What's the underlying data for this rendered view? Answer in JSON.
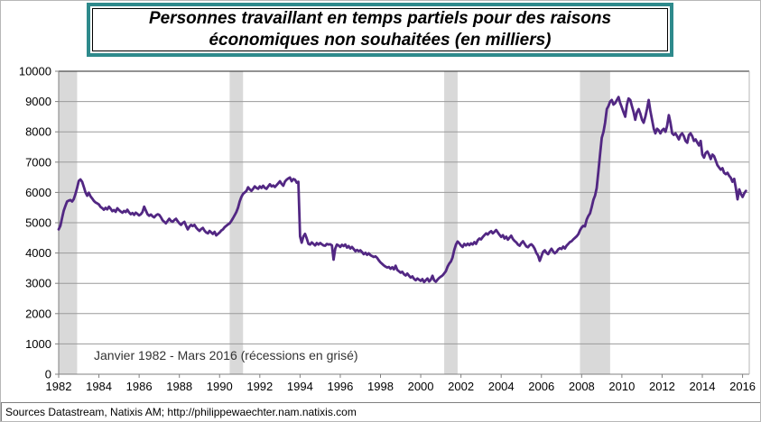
{
  "title": {
    "line1": "Personnes travaillant en temps partiels pour des raisons",
    "line2": "économiques non souhaitées (en milliers)"
  },
  "annotation": "Janvier 1982 - Mars 2016 (récessions en grisé)",
  "footer": "Sources Datastream, Natixis AM; http://philippewaechter.nam.natixis.com",
  "chart_data": {
    "type": "line",
    "title": "Personnes travaillant en temps partiels pour des raisons économiques non souhaitées (en milliers)",
    "xlabel": "",
    "ylabel": "",
    "x_domain": [
      1982,
      2016.3333
    ],
    "y_domain": [
      0,
      10000
    ],
    "x_ticks": [
      1982,
      1984,
      1986,
      1988,
      1990,
      1992,
      1994,
      1996,
      1998,
      2000,
      2002,
      2004,
      2006,
      2008,
      2010,
      2012,
      2014,
      2016
    ],
    "y_ticks": [
      0,
      1000,
      2000,
      3000,
      4000,
      5000,
      6000,
      7000,
      8000,
      9000,
      10000
    ],
    "grid": "horizontal",
    "legend": "none",
    "start_year": 1982,
    "points_per_year": 12,
    "values": [
      4780,
      4900,
      5150,
      5400,
      5550,
      5700,
      5730,
      5750,
      5700,
      5780,
      5950,
      6150,
      6380,
      6430,
      6350,
      6180,
      6000,
      5890,
      5990,
      5870,
      5800,
      5720,
      5670,
      5640,
      5600,
      5520,
      5480,
      5430,
      5490,
      5440,
      5530,
      5460,
      5380,
      5420,
      5360,
      5480,
      5420,
      5370,
      5330,
      5390,
      5350,
      5430,
      5340,
      5280,
      5320,
      5260,
      5330,
      5290,
      5240,
      5280,
      5350,
      5530,
      5400,
      5280,
      5230,
      5270,
      5210,
      5180,
      5240,
      5280,
      5260,
      5180,
      5080,
      5030,
      4980,
      5060,
      5130,
      5060,
      5030,
      5090,
      5130,
      5050,
      4980,
      4930,
      4990,
      5030,
      4900,
      4780,
      4870,
      4930,
      4890,
      4930,
      4840,
      4780,
      4730,
      4790,
      4830,
      4740,
      4680,
      4650,
      4730,
      4680,
      4630,
      4700,
      4580,
      4630,
      4680,
      4740,
      4780,
      4850,
      4900,
      4940,
      4980,
      5060,
      5150,
      5250,
      5350,
      5500,
      5700,
      5850,
      5950,
      6000,
      6050,
      6170,
      6100,
      6050,
      6120,
      6200,
      6150,
      6120,
      6200,
      6150,
      6220,
      6150,
      6120,
      6200,
      6270,
      6200,
      6230,
      6180,
      6240,
      6300,
      6370,
      6280,
      6220,
      6360,
      6420,
      6460,
      6490,
      6370,
      6440,
      6420,
      6320,
      6350,
      4550,
      4340,
      4550,
      4630,
      4480,
      4300,
      4280,
      4350,
      4300,
      4250,
      4330,
      4280,
      4330,
      4290,
      4250,
      4240,
      4300,
      4280,
      4290,
      4250,
      3780,
      4150,
      4280,
      4250,
      4200,
      4270,
      4230,
      4280,
      4180,
      4230,
      4150,
      4200,
      4130,
      4060,
      4100,
      4060,
      4090,
      4030,
      3960,
      4010,
      3940,
      3990,
      3930,
      3900,
      3870,
      3890,
      3840,
      3760,
      3690,
      3640,
      3590,
      3550,
      3520,
      3540,
      3480,
      3530,
      3460,
      3580,
      3440,
      3400,
      3350,
      3380,
      3300,
      3260,
      3320,
      3250,
      3190,
      3230,
      3150,
      3100,
      3160,
      3120,
      3080,
      3140,
      3040,
      3100,
      3160,
      3060,
      3120,
      3250,
      3100,
      3050,
      3120,
      3180,
      3220,
      3260,
      3330,
      3400,
      3550,
      3650,
      3720,
      3850,
      4100,
      4280,
      4380,
      4320,
      4250,
      4200,
      4300,
      4250,
      4310,
      4260,
      4320,
      4280,
      4360,
      4300,
      4420,
      4480,
      4450,
      4530,
      4590,
      4650,
      4610,
      4680,
      4720,
      4650,
      4700,
      4760,
      4680,
      4600,
      4530,
      4590,
      4480,
      4540,
      4440,
      4510,
      4570,
      4460,
      4400,
      4350,
      4280,
      4240,
      4330,
      4390,
      4300,
      4220,
      4190,
      4260,
      4290,
      4230,
      4140,
      4000,
      3920,
      3740,
      3900,
      4040,
      4090,
      4010,
      3960,
      4060,
      4140,
      4050,
      3990,
      4040,
      4120,
      4160,
      4130,
      4210,
      4150,
      4240,
      4300,
      4360,
      4390,
      4450,
      4500,
      4550,
      4620,
      4750,
      4840,
      4900,
      4880,
      5100,
      5220,
      5310,
      5520,
      5750,
      5900,
      6150,
      6700,
      7250,
      7800,
      8000,
      8300,
      8750,
      8850,
      9000,
      9050,
      8900,
      8950,
      9050,
      9150,
      8950,
      8800,
      8650,
      8500,
      8900,
      9100,
      9050,
      8850,
      8650,
      8400,
      8650,
      8750,
      8600,
      8400,
      8300,
      8500,
      8750,
      9050,
      8700,
      8400,
      8100,
      7950,
      8100,
      8050,
      7950,
      8050,
      8100,
      8000,
      8200,
      8550,
      8300,
      7950,
      7900,
      7950,
      7850,
      7750,
      7900,
      7950,
      7850,
      7700,
      7640,
      7900,
      7950,
      7850,
      7700,
      7750,
      7650,
      7550,
      7700,
      7250,
      7150,
      7300,
      7350,
      7250,
      7100,
      7250,
      7200,
      7050,
      6900,
      6820,
      6750,
      6800,
      6650,
      6600,
      6650,
      6550,
      6480,
      6350,
      6450,
      6150,
      5770,
      6100,
      5950,
      5850,
      5970,
      6050
    ],
    "recessions": [
      [
        1982.0,
        1982.9167
      ],
      [
        1990.5,
        1991.1667
      ],
      [
        2001.1667,
        2001.8333
      ],
      [
        2007.9167,
        2009.4167
      ]
    ],
    "colors": {
      "line": "#522783",
      "recession_band": "#D9D9D9",
      "gridline": "#9a9a9a",
      "top_border": "#262626",
      "axis": "#808080",
      "title_border": "#2E8A8C"
    }
  }
}
